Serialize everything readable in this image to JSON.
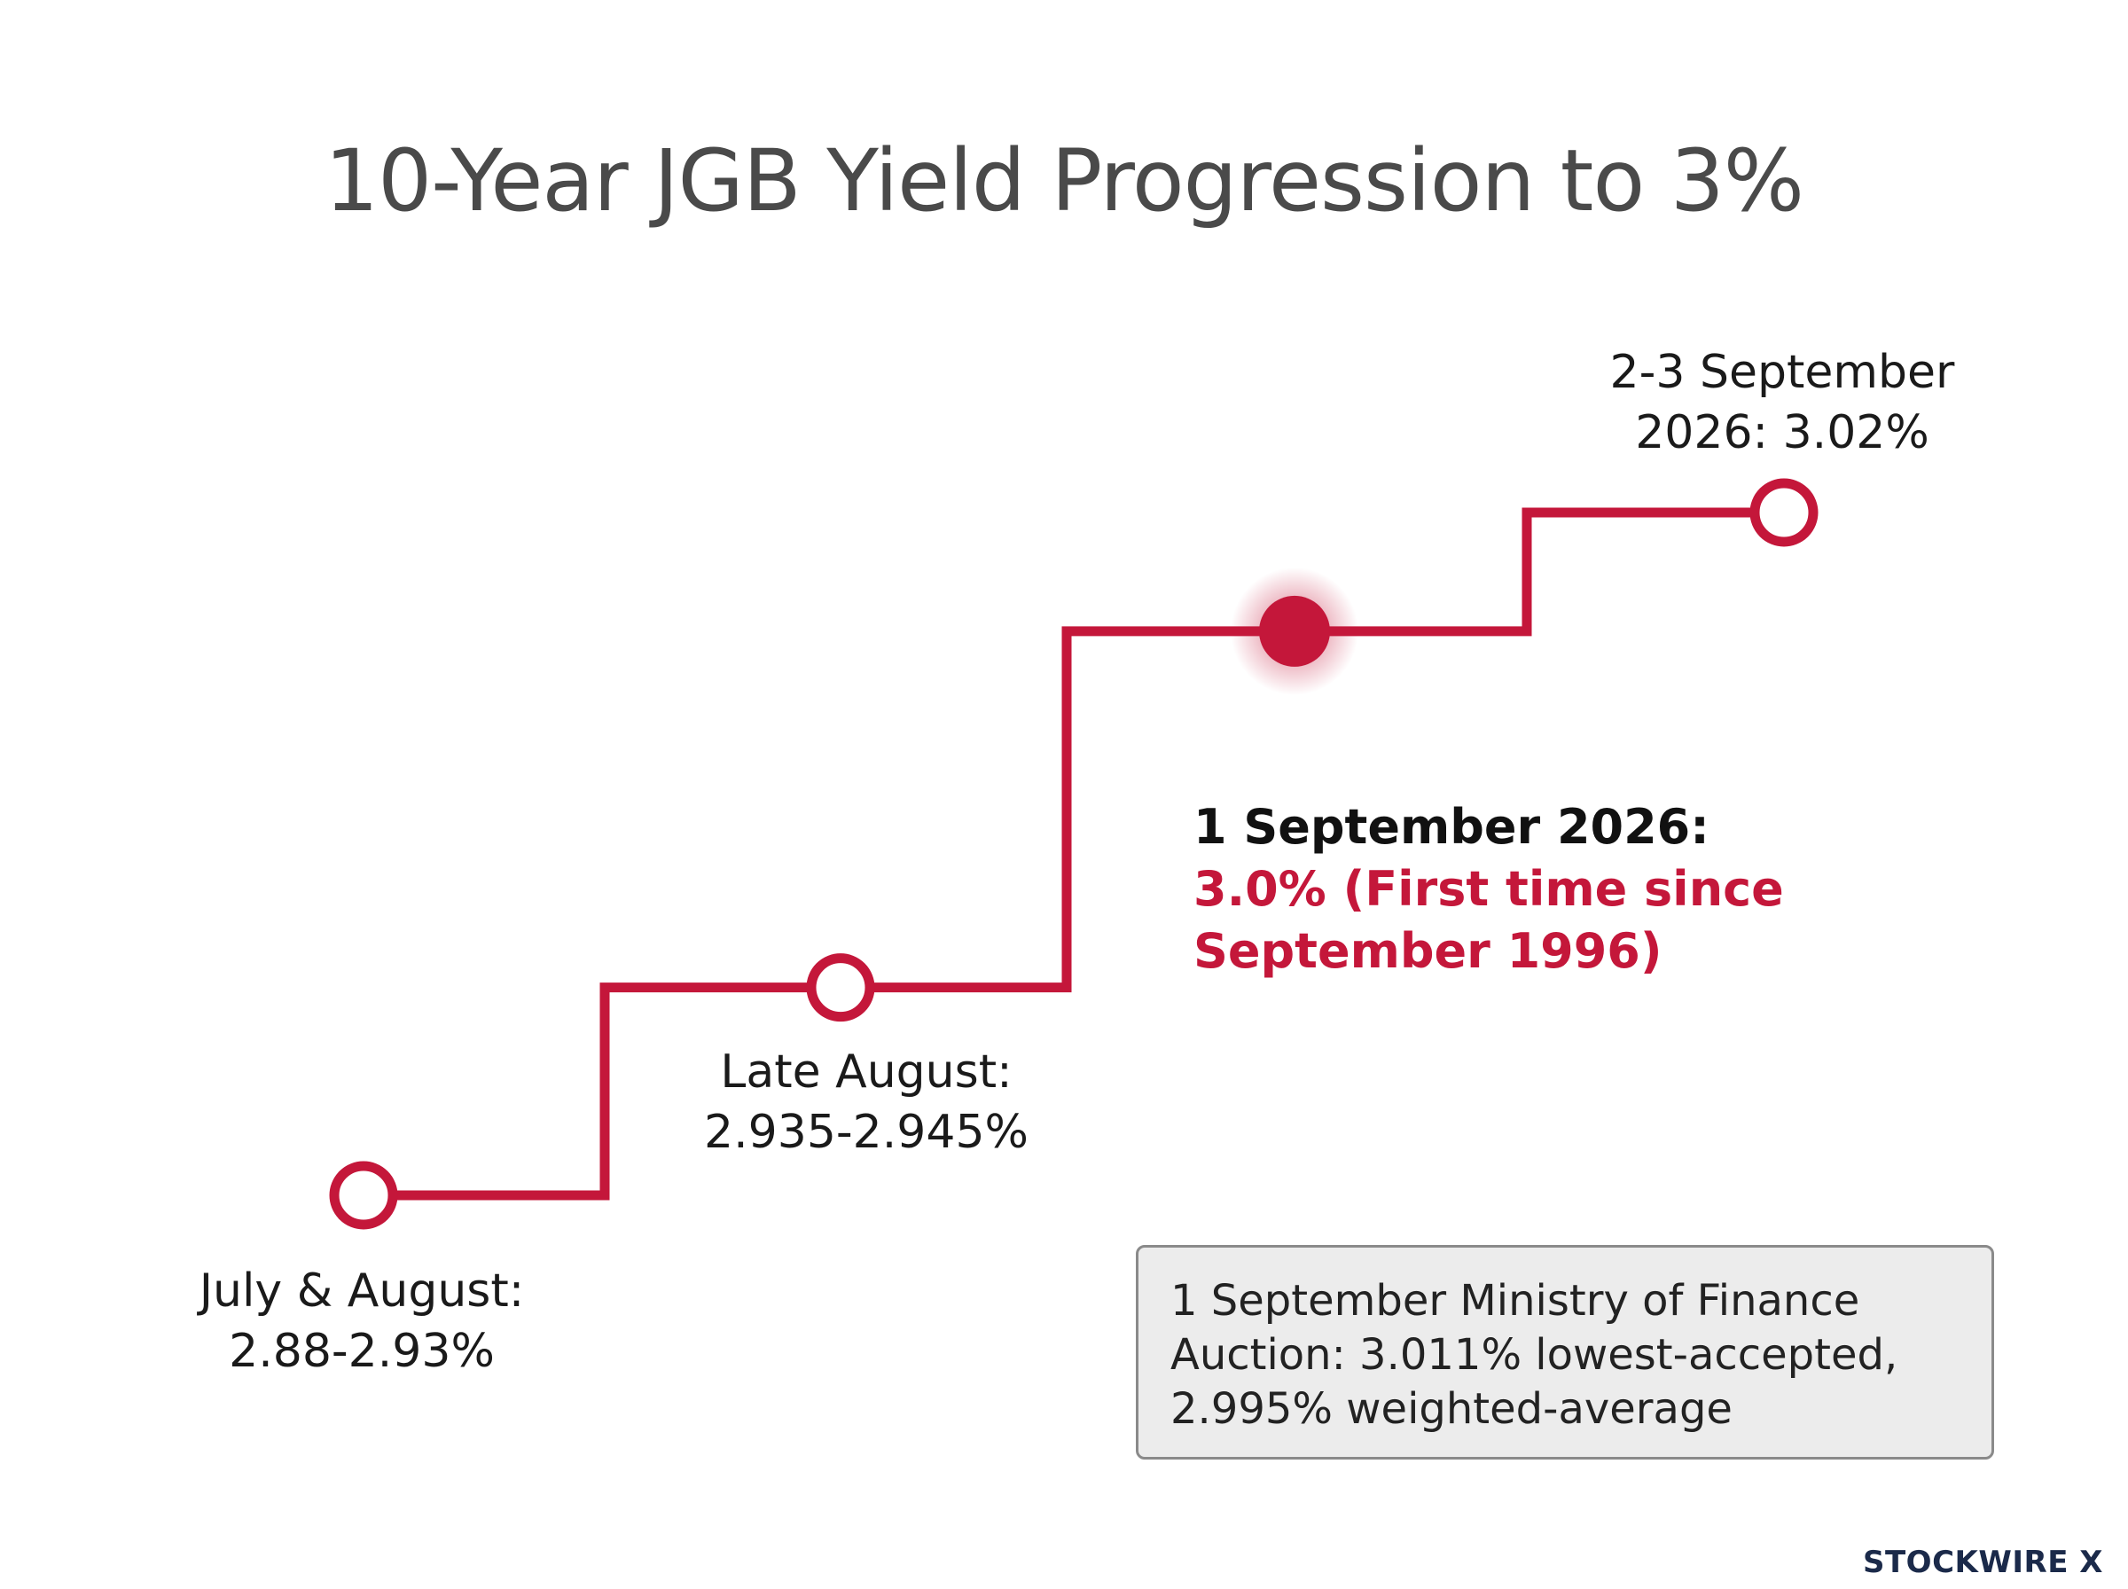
{
  "chart_data": {
    "type": "line",
    "title": "10-Year JGB Yield Progression to 3%",
    "xlabel": "",
    "ylabel": "",
    "grid": false,
    "legend": "none",
    "step": true,
    "points": [
      {
        "period": "July & August",
        "value": 2.905,
        "label_top": "July & August:",
        "label_bottom": "2.88-2.93%",
        "style": "hollow"
      },
      {
        "period": "Late August",
        "value": 2.94,
        "label_top": "Late August:",
        "label_bottom": "2.935-2.945%",
        "style": "hollow"
      },
      {
        "period": "1 September 2026",
        "value": 3.0,
        "label_top": "1 September 2026:",
        "label_lines": [
          "3.0% (First time since",
          "September 1996)"
        ],
        "style": "highlighted"
      },
      {
        "period": "2-3 September 2026",
        "value": 3.02,
        "label_top": "2-3 September",
        "label_bottom": "2026: 3.02%",
        "style": "hollow"
      }
    ],
    "annotation": {
      "lines": [
        "1 September Ministry of Finance",
        "Auction: 3.011% lowest-accepted,",
        "2.995% weighted-average"
      ]
    }
  },
  "colors": {
    "line": "#c4173a",
    "highlight": "#c4173a",
    "title": "#4a4a4a"
  },
  "brand": "STOCKWIRE X"
}
